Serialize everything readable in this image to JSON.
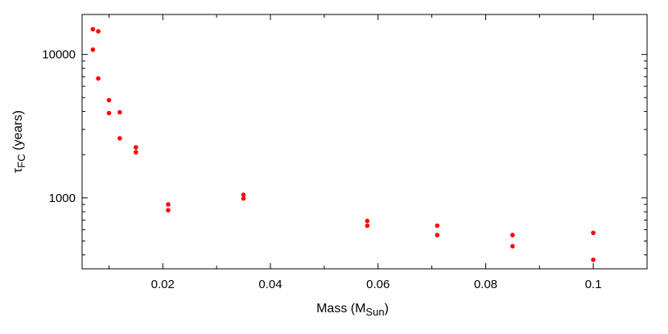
{
  "chart_data": {
    "type": "scatter",
    "x_axis": {
      "label": "Mass (M",
      "label_subscript": "Sun",
      "label_suffix": ")",
      "range": [
        0.005,
        0.11
      ],
      "ticks": [
        0.02,
        0.04,
        0.06,
        0.08,
        0.1
      ],
      "tick_labels": [
        "0.02",
        "0.04",
        "0.06",
        "0.08",
        "0.1"
      ],
      "scale": "linear"
    },
    "y_axis": {
      "label": "τ",
      "label_subscript": "FC",
      "label_suffix": " (years)",
      "range": [
        320,
        19000
      ],
      "ticks": [
        1000,
        10000
      ],
      "tick_labels": [
        "1000",
        "10000"
      ],
      "scale": "log"
    },
    "grid": false,
    "series": [
      {
        "color": "#ff0000",
        "points": [
          {
            "x": 0.007,
            "y": 15000
          },
          {
            "x": 0.008,
            "y": 14500
          },
          {
            "x": 0.007,
            "y": 10800
          },
          {
            "x": 0.008,
            "y": 6800
          },
          {
            "x": 0.01,
            "y": 4800
          },
          {
            "x": 0.012,
            "y": 3950
          },
          {
            "x": 0.01,
            "y": 3900
          },
          {
            "x": 0.012,
            "y": 2600
          },
          {
            "x": 0.015,
            "y": 2250
          },
          {
            "x": 0.015,
            "y": 2080
          },
          {
            "x": 0.021,
            "y": 900
          },
          {
            "x": 0.021,
            "y": 820
          },
          {
            "x": 0.035,
            "y": 1050
          },
          {
            "x": 0.035,
            "y": 990
          },
          {
            "x": 0.058,
            "y": 690
          },
          {
            "x": 0.058,
            "y": 640
          },
          {
            "x": 0.071,
            "y": 640
          },
          {
            "x": 0.071,
            "y": 550
          },
          {
            "x": 0.085,
            "y": 550
          },
          {
            "x": 0.085,
            "y": 460
          },
          {
            "x": 0.1,
            "y": 570
          },
          {
            "x": 0.1,
            "y": 370
          }
        ]
      }
    ]
  }
}
